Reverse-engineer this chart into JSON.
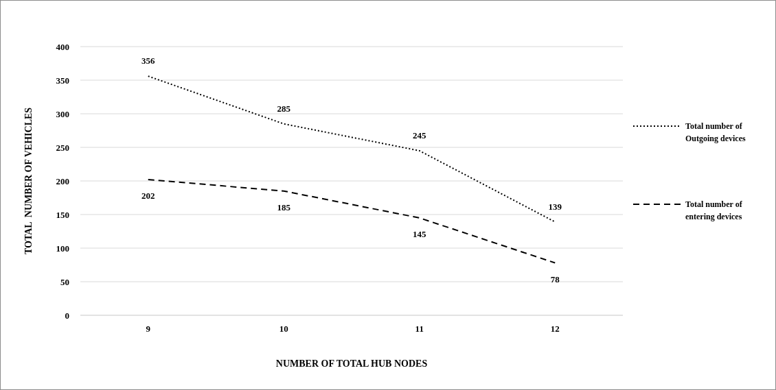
{
  "chart_data": {
    "type": "line",
    "xlabel": "NUMBER OF TOTAL HUB NODES",
    "ylabel": "TOTAL  NUMBER OF VEHICLES",
    "categories": [
      "9",
      "10",
      "11",
      "12"
    ],
    "series": [
      {
        "name": "Total number of Outgoing devices",
        "color": "#000000",
        "values": [
          356,
          285,
          245,
          139
        ],
        "line_style": "dotted"
      },
      {
        "name": "Total number of entering devices",
        "color": "#000000",
        "values": [
          202,
          185,
          145,
          78
        ],
        "line_style": "dashed"
      }
    ],
    "ylim": [
      0,
      400
    ],
    "yticks": [
      0,
      50,
      100,
      150,
      200,
      250,
      300,
      350,
      400
    ],
    "grid": "y",
    "legend": "right",
    "data_labels": true,
    "marker": "none"
  }
}
